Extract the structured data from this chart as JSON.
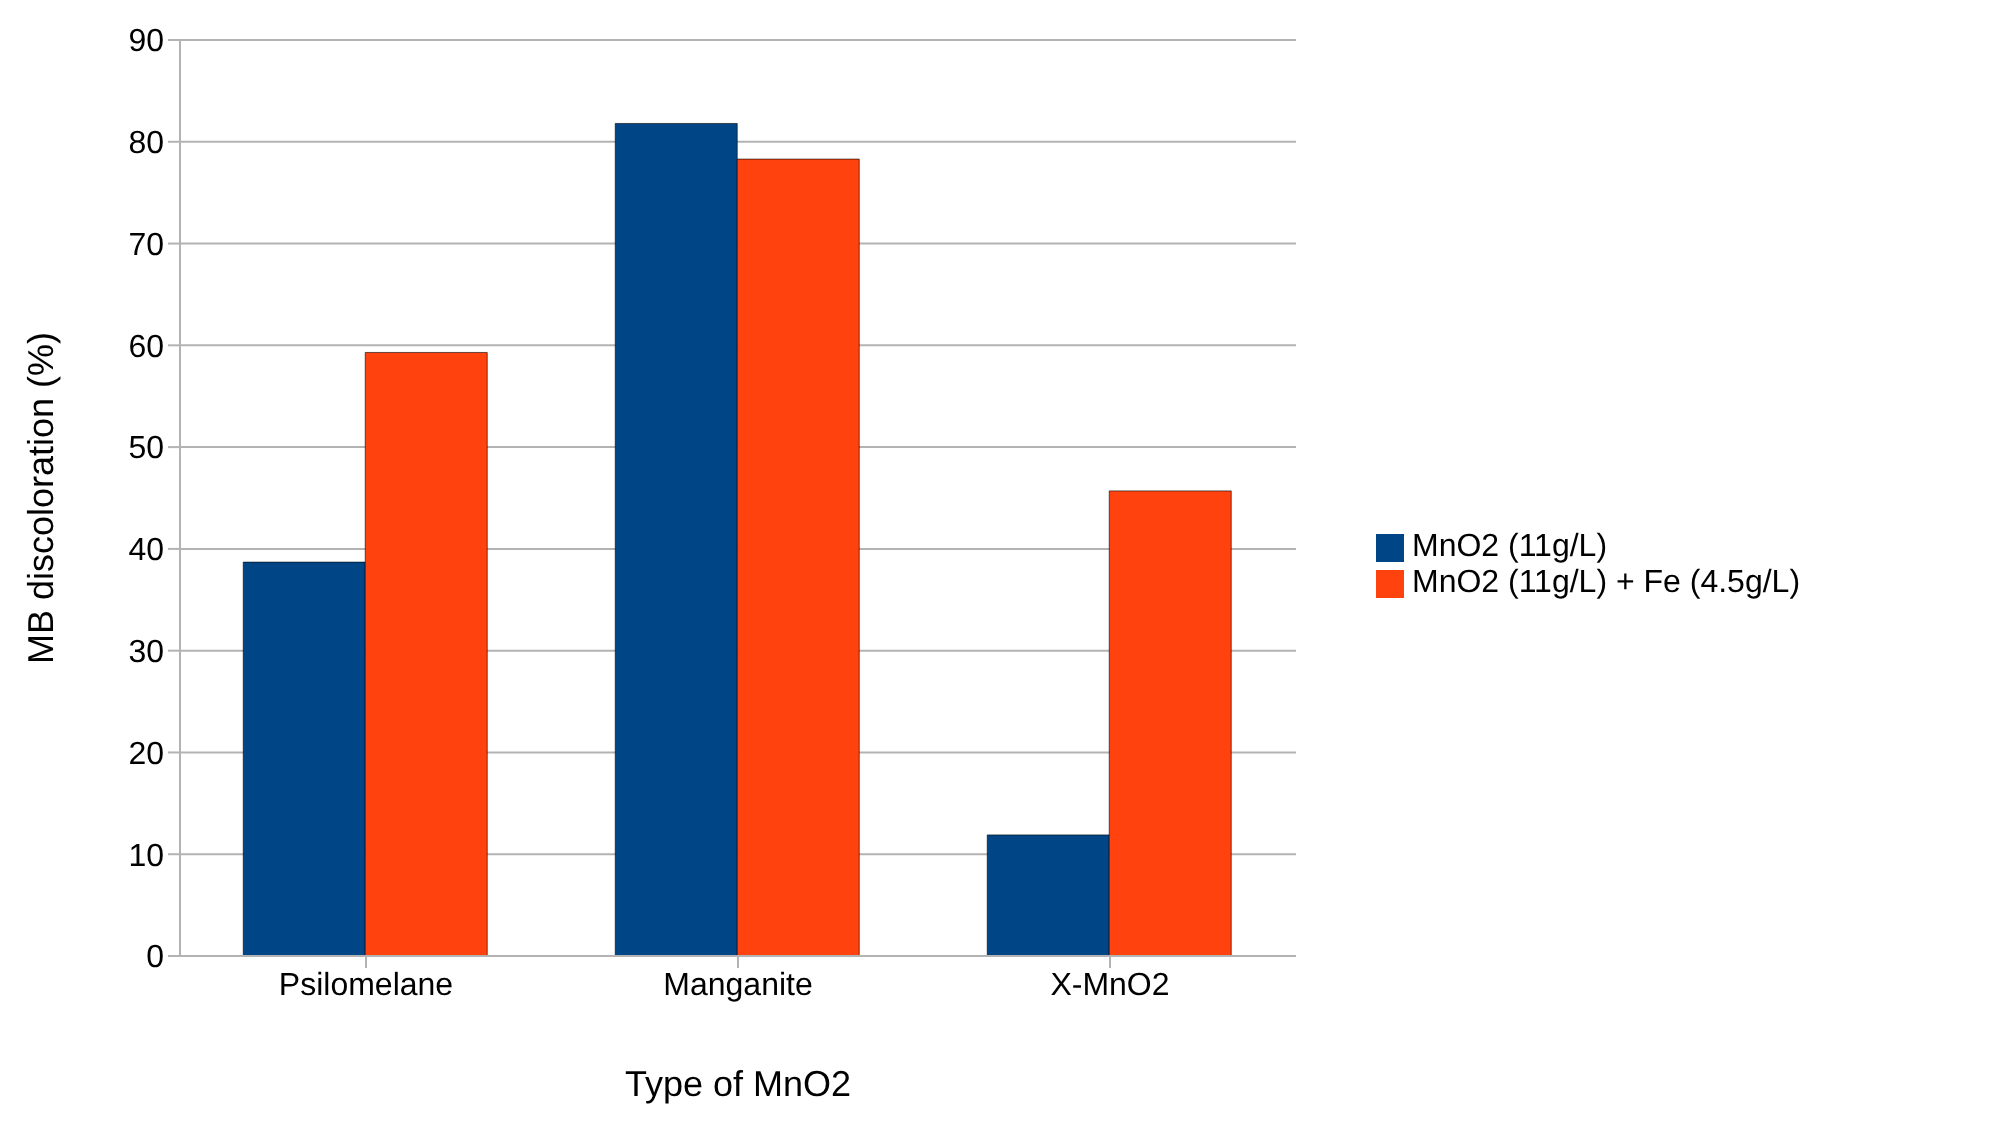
{
  "chart_data": {
    "type": "bar",
    "xlabel": "Type of MnO2",
    "ylabel": "MB discoloration (%)",
    "categories": [
      "Psilomelane",
      "Manganite",
      "X-MnO2"
    ],
    "series": [
      {
        "name": "MnO2 (11g/L)",
        "color": "#004586",
        "values": [
          38.7,
          81.8,
          11.9
        ]
      },
      {
        "name": "MnO2 (11g/L) + Fe (4.5g/L)",
        "color": "#ff420e",
        "values": [
          59.3,
          78.3,
          45.7
        ]
      }
    ],
    "ylim": [
      0,
      90
    ],
    "yticks": [
      0,
      10,
      20,
      30,
      40,
      50,
      60,
      70,
      80,
      90
    ],
    "grid": "y",
    "legend": "right"
  }
}
